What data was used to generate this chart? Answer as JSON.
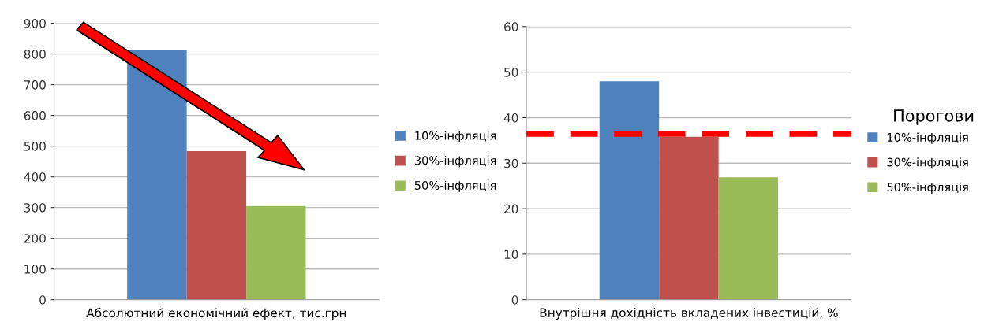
{
  "chart_data": [
    {
      "type": "bar",
      "categories": [
        null
      ],
      "xlabel": "Абсолютний економічний ефект, тис.грн",
      "ylim": [
        0,
        900
      ],
      "yticks": [
        0,
        100,
        200,
        300,
        400,
        500,
        600,
        700,
        800,
        900
      ],
      "grid": "y",
      "legend": "right",
      "series": [
        {
          "name": "10%-інфляція",
          "color": "#4f81bd",
          "values": [
            812
          ]
        },
        {
          "name": "30%-інфляція",
          "color": "#c0504d",
          "values": [
            484
          ]
        },
        {
          "name": "50%-інфляція",
          "color": "#9bbb59",
          "values": [
            305
          ]
        }
      ]
    },
    {
      "type": "bar",
      "categories": [
        null
      ],
      "xlabel": "Внутрішня дохідність вкладених інвестицій, %",
      "ylim": [
        0,
        60
      ],
      "yticks": [
        0,
        10,
        20,
        30,
        40,
        50,
        60
      ],
      "grid": "y",
      "legend": "right",
      "series": [
        {
          "name": "10%-інфляція",
          "color": "#4f81bd",
          "values": [
            48.0
          ]
        },
        {
          "name": "30%-інфляція",
          "color": "#c0504d",
          "values": [
            35.8
          ]
        },
        {
          "name": "50%-інфляція",
          "color": "#9bbb59",
          "values": [
            26.9
          ]
        }
      ],
      "ref_lines": [
        {
          "axis": "y",
          "value": 36.4,
          "label": "Порогови",
          "color": "#ff0000",
          "line_style": "dashed"
        }
      ]
    }
  ]
}
